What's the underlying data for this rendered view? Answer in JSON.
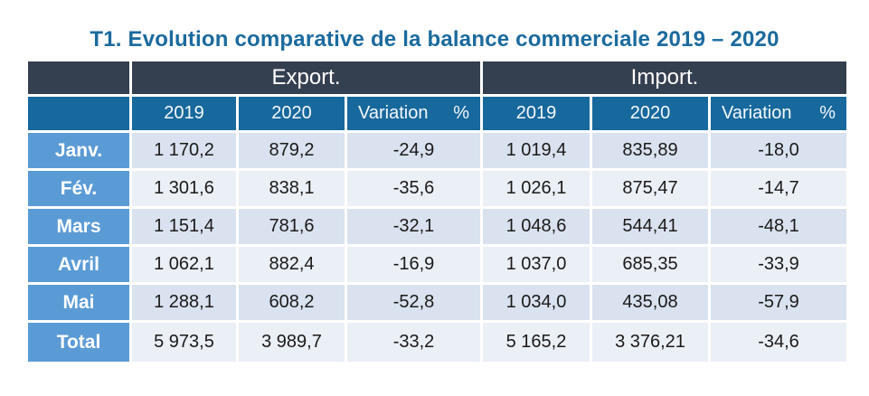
{
  "title": "T1. Evolution comparative de la balance commerciale 2019 – 2020",
  "colors": {
    "title_blue": "#1B6A9E",
    "header_dark": "#343F50",
    "subheader_blue": "#17689C",
    "row_label_blue": "#5B9BD5",
    "band_dark": "#D9E2EE",
    "band_light": "#EBEFF6",
    "grid_gap": "#FFFFFF",
    "value_text": "#1A1A1A"
  },
  "table": {
    "group_headers": {
      "export": "Export.",
      "import": "Import."
    },
    "column_headers": [
      "2019",
      "2020",
      "Variation %",
      "2019",
      "2020",
      "Variation %"
    ],
    "rows": [
      {
        "label": "Janv.",
        "values": [
          "1 170,2",
          "879,2",
          "-24,9",
          "1 019,4",
          "835,89",
          "-18,0"
        ]
      },
      {
        "label": "Fév.",
        "values": [
          "1 301,6",
          "838,1",
          "-35,6",
          "1 026,1",
          "875,47",
          "-14,7"
        ]
      },
      {
        "label": "Mars",
        "values": [
          "1 151,4",
          "781,6",
          "-32,1",
          "1 048,6",
          "544,41",
          "-48,1"
        ]
      },
      {
        "label": "Avril",
        "values": [
          "1 062,1",
          "882,4",
          "-16,9",
          "1 037,0",
          "685,35",
          "-33,9"
        ]
      },
      {
        "label": "Mai",
        "values": [
          "1 288,1",
          "608,2",
          "-52,8",
          "1 034,0",
          "435,08",
          "-57,9"
        ]
      },
      {
        "label": "Total",
        "values": [
          "5 973,5",
          "3 989,7",
          "-33,2",
          "5 165,2",
          "3 376,21",
          "-34,6"
        ]
      }
    ]
  },
  "chart_data": {
    "type": "table",
    "title": "T1. Evolution comparative de la balance commerciale 2019 – 2020",
    "column_groups": [
      "Export.",
      "Import."
    ],
    "columns": [
      "Export 2019",
      "Export 2020",
      "Export Variation %",
      "Import 2019",
      "Import 2020",
      "Import Variation %"
    ],
    "row_labels": [
      "Janv.",
      "Fév.",
      "Mars",
      "Avril",
      "Mai",
      "Total"
    ],
    "values": [
      [
        1170.2,
        879.2,
        -24.9,
        1019.4,
        835.89,
        -18.0
      ],
      [
        1301.6,
        838.1,
        -35.6,
        1026.1,
        875.47,
        -14.7
      ],
      [
        1151.4,
        781.6,
        -32.1,
        1048.6,
        544.41,
        -48.1
      ],
      [
        1062.1,
        882.4,
        -16.9,
        1037.0,
        685.35,
        -33.9
      ],
      [
        1288.1,
        608.2,
        -52.8,
        1034.0,
        435.08,
        -57.9
      ],
      [
        5973.5,
        3989.7,
        -33.2,
        5165.2,
        3376.21,
        -34.6
      ]
    ],
    "notes": "Decimal comma and thin-space thousands separators in display; negative variations in percent."
  }
}
